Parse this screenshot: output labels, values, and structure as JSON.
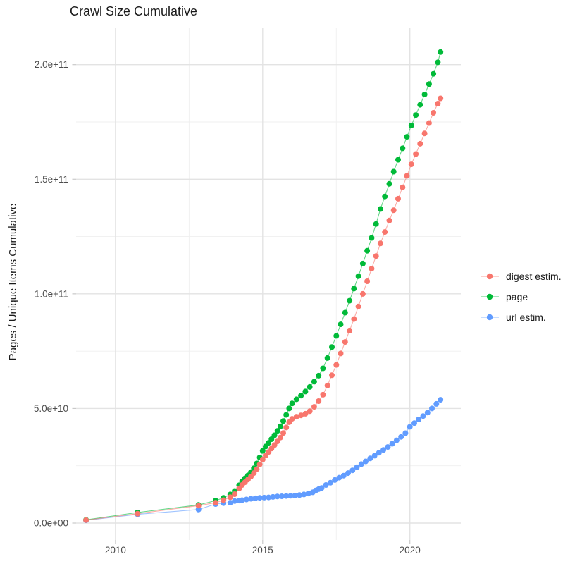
{
  "title": "Crawl Size Cumulative",
  "axes": {
    "y_title": "Pages / Unique Items Cumulative",
    "x_title": "",
    "x_ticks": [
      {
        "label": "2010",
        "year": 2010
      },
      {
        "label": "2015",
        "year": 2015
      },
      {
        "label": "2020",
        "year": 2020
      }
    ],
    "x_minor_years": [
      2012.5,
      2017.5
    ],
    "y_ticks": [
      {
        "label": "0.0e+00",
        "value_e9": 0
      },
      {
        "label": "5.0e+10",
        "value_e9": 50
      },
      {
        "label": "1.0e+11",
        "value_e9": 100
      },
      {
        "label": "1.5e+11",
        "value_e9": 150
      },
      {
        "label": "2.0e+11",
        "value_e9": 200
      }
    ],
    "y_minor_e9": [
      25,
      75,
      125,
      175
    ]
  },
  "legend": {
    "items": [
      {
        "label": "digest estim.",
        "color": "#F8766D"
      },
      {
        "label": "page",
        "color": "#00BA38"
      },
      {
        "label": "url estim.",
        "color": "#619CFF"
      }
    ]
  },
  "chart_data": {
    "type": "scatter",
    "title": "Crawl Size Cumulative",
    "xlabel": "",
    "ylabel": "Pages / Unique Items Cumulative",
    "x_range": [
      2008.7,
      2021.7
    ],
    "y_range_e9": [
      -8,
      216
    ],
    "y_unit": "1e9",
    "grid": true,
    "legend_position": "right",
    "series": [
      {
        "name": "digest estim.",
        "color": "#F8766D",
        "points": [
          [
            2009.0,
            1.3
          ],
          [
            2010.75,
            4.1
          ],
          [
            2012.82,
            7.6
          ],
          [
            2013.4,
            8.9
          ],
          [
            2013.67,
            10.0
          ],
          [
            2013.9,
            11.3
          ],
          [
            2014.05,
            12.6
          ],
          [
            2014.2,
            15.1
          ],
          [
            2014.3,
            16.6
          ],
          [
            2014.4,
            17.8
          ],
          [
            2014.5,
            19.0
          ],
          [
            2014.6,
            20.3
          ],
          [
            2014.7,
            21.8
          ],
          [
            2014.8,
            23.5
          ],
          [
            2014.9,
            25.6
          ],
          [
            2015.0,
            27.7
          ],
          [
            2015.1,
            29.5
          ],
          [
            2015.2,
            31.0
          ],
          [
            2015.3,
            32.5
          ],
          [
            2015.4,
            34.0
          ],
          [
            2015.5,
            35.6
          ],
          [
            2015.6,
            37.3
          ],
          [
            2015.7,
            39.3
          ],
          [
            2015.8,
            41.7
          ],
          [
            2015.9,
            44.0
          ],
          [
            2016.0,
            45.5
          ],
          [
            2016.15,
            46.4
          ],
          [
            2016.3,
            47.0
          ],
          [
            2016.45,
            47.7
          ],
          [
            2016.6,
            48.8
          ],
          [
            2016.75,
            50.7
          ],
          [
            2016.9,
            53.2
          ],
          [
            2017.05,
            56.0
          ],
          [
            2017.2,
            60.0
          ],
          [
            2017.35,
            64.5
          ],
          [
            2017.5,
            69.0
          ],
          [
            2017.65,
            74.0
          ],
          [
            2017.8,
            79.0
          ],
          [
            2017.95,
            84.0
          ],
          [
            2018.1,
            89.0
          ],
          [
            2018.25,
            94.5
          ],
          [
            2018.4,
            100.0
          ],
          [
            2018.55,
            105.5
          ],
          [
            2018.7,
            111.0
          ],
          [
            2018.85,
            116.5
          ],
          [
            2019.0,
            122.0
          ],
          [
            2019.15,
            127.0
          ],
          [
            2019.3,
            132.0
          ],
          [
            2019.45,
            136.5
          ],
          [
            2019.6,
            141.5
          ],
          [
            2019.75,
            146.5
          ],
          [
            2019.9,
            151.5
          ],
          [
            2020.05,
            156.5
          ],
          [
            2020.2,
            161.0
          ],
          [
            2020.35,
            165.5
          ],
          [
            2020.5,
            170.0
          ],
          [
            2020.65,
            174.5
          ],
          [
            2020.8,
            179.0
          ],
          [
            2020.95,
            183.0
          ],
          [
            2021.04,
            185.3
          ]
        ]
      },
      {
        "name": "page",
        "color": "#00BA38",
        "points": [
          [
            2009.0,
            1.4
          ],
          [
            2010.75,
            4.6
          ],
          [
            2012.82,
            7.9
          ],
          [
            2013.4,
            9.8
          ],
          [
            2013.67,
            11.0
          ],
          [
            2013.9,
            12.5
          ],
          [
            2014.05,
            14.0
          ],
          [
            2014.2,
            16.5
          ],
          [
            2014.3,
            18.2
          ],
          [
            2014.4,
            19.5
          ],
          [
            2014.5,
            20.8
          ],
          [
            2014.6,
            22.2
          ],
          [
            2014.7,
            23.9
          ],
          [
            2014.8,
            26.0
          ],
          [
            2014.9,
            28.6
          ],
          [
            2015.0,
            31.5
          ],
          [
            2015.1,
            33.4
          ],
          [
            2015.2,
            35.0
          ],
          [
            2015.3,
            36.6
          ],
          [
            2015.4,
            38.3
          ],
          [
            2015.5,
            40.2
          ],
          [
            2015.6,
            42.2
          ],
          [
            2015.7,
            44.5
          ],
          [
            2015.8,
            47.2
          ],
          [
            2015.9,
            50.0
          ],
          [
            2016.0,
            52.2
          ],
          [
            2016.15,
            54.0
          ],
          [
            2016.3,
            55.6
          ],
          [
            2016.45,
            57.4
          ],
          [
            2016.6,
            59.4
          ],
          [
            2016.75,
            61.7
          ],
          [
            2016.9,
            64.3
          ],
          [
            2017.05,
            67.5
          ],
          [
            2017.2,
            72.0
          ],
          [
            2017.35,
            76.8
          ],
          [
            2017.5,
            81.7
          ],
          [
            2017.65,
            86.7
          ],
          [
            2017.8,
            91.8
          ],
          [
            2017.95,
            97.0
          ],
          [
            2018.1,
            102.3
          ],
          [
            2018.25,
            107.7
          ],
          [
            2018.4,
            113.2
          ],
          [
            2018.55,
            118.8
          ],
          [
            2018.7,
            124.4
          ],
          [
            2018.85,
            130.5
          ],
          [
            2019.0,
            137.0
          ],
          [
            2019.15,
            142.5
          ],
          [
            2019.3,
            148.0
          ],
          [
            2019.45,
            153.3
          ],
          [
            2019.6,
            158.5
          ],
          [
            2019.75,
            163.5
          ],
          [
            2019.9,
            168.5
          ],
          [
            2020.05,
            173.5
          ],
          [
            2020.2,
            178.0
          ],
          [
            2020.35,
            182.5
          ],
          [
            2020.5,
            187.0
          ],
          [
            2020.65,
            191.5
          ],
          [
            2020.8,
            196.0
          ],
          [
            2020.95,
            201.0
          ],
          [
            2021.04,
            205.5
          ]
        ]
      },
      {
        "name": "url estim.",
        "color": "#619CFF",
        "points": [
          [
            2009.0,
            1.2
          ],
          [
            2010.75,
            3.8
          ],
          [
            2012.82,
            5.9
          ],
          [
            2013.4,
            8.3
          ],
          [
            2013.67,
            8.7
          ],
          [
            2013.9,
            8.9
          ],
          [
            2014.05,
            9.6
          ],
          [
            2014.2,
            9.8
          ],
          [
            2014.3,
            10.0
          ],
          [
            2014.45,
            10.3
          ],
          [
            2014.6,
            10.6
          ],
          [
            2014.75,
            10.8
          ],
          [
            2014.9,
            11.0
          ],
          [
            2015.05,
            11.1
          ],
          [
            2015.2,
            11.2
          ],
          [
            2015.35,
            11.4
          ],
          [
            2015.5,
            11.6
          ],
          [
            2015.65,
            11.7
          ],
          [
            2015.8,
            11.8
          ],
          [
            2015.95,
            11.9
          ],
          [
            2016.1,
            12.0
          ],
          [
            2016.25,
            12.2
          ],
          [
            2016.4,
            12.5
          ],
          [
            2016.55,
            12.9
          ],
          [
            2016.7,
            13.4
          ],
          [
            2016.8,
            14.2
          ],
          [
            2016.9,
            14.8
          ],
          [
            2017.0,
            15.3
          ],
          [
            2017.15,
            16.6
          ],
          [
            2017.3,
            17.6
          ],
          [
            2017.45,
            18.8
          ],
          [
            2017.6,
            19.8
          ],
          [
            2017.75,
            20.7
          ],
          [
            2017.9,
            21.8
          ],
          [
            2018.05,
            23.0
          ],
          [
            2018.2,
            24.4
          ],
          [
            2018.35,
            25.7
          ],
          [
            2018.5,
            26.9
          ],
          [
            2018.65,
            28.2
          ],
          [
            2018.8,
            29.4
          ],
          [
            2018.95,
            30.7
          ],
          [
            2019.1,
            31.9
          ],
          [
            2019.25,
            33.2
          ],
          [
            2019.4,
            34.6
          ],
          [
            2019.55,
            36.1
          ],
          [
            2019.7,
            37.6
          ],
          [
            2019.85,
            39.2
          ],
          [
            2020.0,
            42.0
          ],
          [
            2020.15,
            43.6
          ],
          [
            2020.3,
            45.2
          ],
          [
            2020.45,
            46.7
          ],
          [
            2020.6,
            48.2
          ],
          [
            2020.75,
            50.0
          ],
          [
            2020.9,
            52.0
          ],
          [
            2021.04,
            53.8
          ]
        ]
      }
    ]
  }
}
